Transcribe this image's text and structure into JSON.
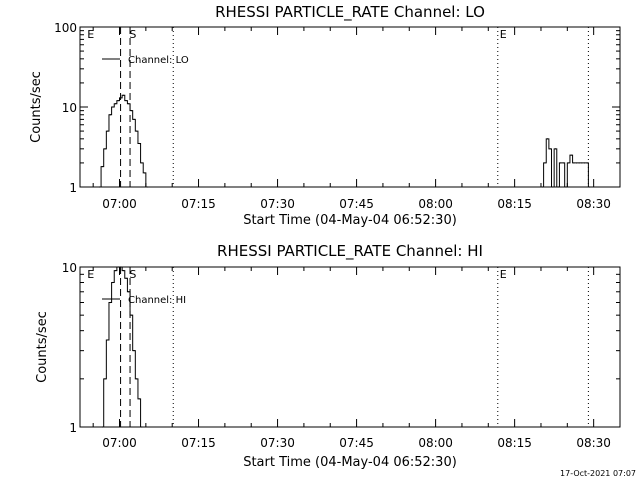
{
  "chart_data": [
    {
      "type": "line",
      "title": "RHESSI PARTICLE_RATE Channel: LO",
      "xlabel": "Start Time (04-May-04 06:52:30)",
      "ylabel": "Counts/sec",
      "yscale": "log",
      "xlim_minutes": [
        -7.5,
        95
      ],
      "ylim": [
        1,
        100
      ],
      "x_ticks": [
        {
          "m": 0,
          "label": "07:00"
        },
        {
          "m": 15,
          "label": "07:15"
        },
        {
          "m": 30,
          "label": "07:30"
        },
        {
          "m": 45,
          "label": "07:45"
        },
        {
          "m": 60,
          "label": "08:00"
        },
        {
          "m": 75,
          "label": "08:15"
        },
        {
          "m": 90,
          "label": "08:30"
        }
      ],
      "y_ticks": [
        {
          "v": 1,
          "label": "1"
        },
        {
          "v": 10,
          "label": "10"
        },
        {
          "v": 100,
          "label": "100"
        }
      ],
      "legend": {
        "label": "Channel: LO",
        "placement": "top-left"
      },
      "markers": [
        {
          "m": -6.5,
          "label": "E",
          "style": "none"
        },
        {
          "m": 0.2,
          "label": "",
          "style": "dashed"
        },
        {
          "m": 1.5,
          "label": "S",
          "style": "none"
        },
        {
          "m": 2.0,
          "label": "",
          "style": "dashed"
        },
        {
          "m": 10.2,
          "label": "",
          "style": "dotted"
        },
        {
          "m": 71.8,
          "label": "E",
          "style": "dotted"
        },
        {
          "m": 89.0,
          "label": "",
          "style": "dotted"
        }
      ],
      "series": [
        {
          "minutes": [
            -4,
            -3.5,
            -3,
            -2.5,
            -2,
            -1.5,
            -1,
            -0.5,
            0,
            0.5,
            1,
            1.5,
            2,
            2.5,
            3,
            3.5,
            4,
            4.5,
            5
          ],
          "values": [
            1,
            1.8,
            3,
            5,
            8,
            10,
            11,
            12,
            13,
            14,
            12,
            11,
            9,
            7,
            5,
            3.5,
            2,
            1.5,
            1
          ]
        },
        {
          "minutes": [
            80,
            80.5,
            81,
            81.5,
            82,
            82.5,
            83,
            83.5,
            84,
            84.5,
            85,
            85.5,
            86,
            86.5,
            87,
            87.5,
            88,
            88.5,
            89
          ],
          "values": [
            1,
            2,
            4,
            3,
            1,
            3,
            1,
            2,
            2,
            1,
            2,
            2.5,
            2,
            2,
            2,
            2,
            2,
            2,
            1
          ]
        }
      ]
    },
    {
      "type": "line",
      "title": "RHESSI PARTICLE_RATE Channel: HI",
      "xlabel": "Start Time (04-May-04 06:52:30)",
      "ylabel": "Counts/sec",
      "yscale": "log",
      "xlim_minutes": [
        -7.5,
        95
      ],
      "ylim": [
        1,
        10
      ],
      "x_ticks": [
        {
          "m": 0,
          "label": "07:00"
        },
        {
          "m": 15,
          "label": "07:15"
        },
        {
          "m": 30,
          "label": "07:30"
        },
        {
          "m": 45,
          "label": "07:45"
        },
        {
          "m": 60,
          "label": "08:00"
        },
        {
          "m": 75,
          "label": "08:15"
        },
        {
          "m": 90,
          "label": "08:30"
        }
      ],
      "y_ticks": [
        {
          "v": 1,
          "label": "1"
        },
        {
          "v": 10,
          "label": "10"
        }
      ],
      "legend": {
        "label": "Channel: HI",
        "placement": "top-left"
      },
      "markers": [
        {
          "m": -6.5,
          "label": "E",
          "style": "none"
        },
        {
          "m": 0.2,
          "label": "",
          "style": "dashed"
        },
        {
          "m": 1.5,
          "label": "S",
          "style": "none"
        },
        {
          "m": 2.0,
          "label": "",
          "style": "dashed"
        },
        {
          "m": 10.2,
          "label": "",
          "style": "dotted"
        },
        {
          "m": 71.8,
          "label": "E",
          "style": "dotted"
        },
        {
          "m": 89.0,
          "label": "",
          "style": "dotted"
        }
      ],
      "series": [
        {
          "minutes": [
            -3.5,
            -3,
            -2.5,
            -2,
            -1.5,
            -1,
            -0.5,
            0,
            0.5,
            1,
            1.5,
            2,
            2.5,
            3,
            3.5,
            4
          ],
          "values": [
            1,
            2,
            3.5,
            6,
            8,
            9.5,
            10,
            10,
            9.5,
            8.5,
            7,
            5,
            3,
            2,
            1.5,
            1
          ]
        }
      ]
    }
  ],
  "footer": "17-Oct-2021 07:07"
}
